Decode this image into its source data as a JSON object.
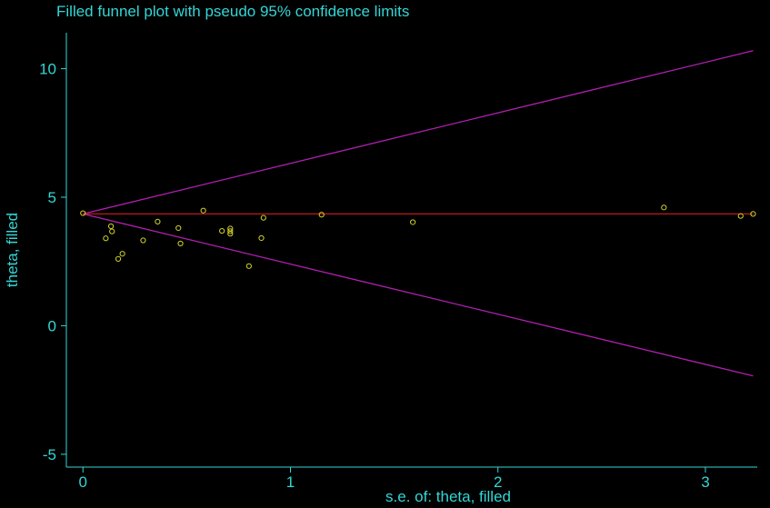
{
  "chart_data": {
    "type": "scatter",
    "title": "Filled funnel plot with pseudo 95% confidence limits",
    "xlabel": "s.e. of: theta, filled",
    "ylabel": "theta, filled",
    "xlim": [
      -0.08,
      3.25
    ],
    "ylim": [
      -5.5,
      11.4
    ],
    "x_ticks": [
      0,
      1,
      2,
      3
    ],
    "y_ticks": [
      -5,
      0,
      5,
      10
    ],
    "grid": false,
    "pooled_estimate": 4.35,
    "confidence_limits": {
      "upper": [
        [
          0,
          4.35
        ],
        [
          3.23,
          10.7
        ]
      ],
      "lower": [
        [
          0,
          4.35
        ],
        [
          3.23,
          -1.95
        ]
      ]
    },
    "points": [
      {
        "x": 0.0,
        "y": 4.38
      },
      {
        "x": 0.11,
        "y": 3.4
      },
      {
        "x": 0.135,
        "y": 3.87
      },
      {
        "x": 0.14,
        "y": 3.67
      },
      {
        "x": 0.17,
        "y": 2.6
      },
      {
        "x": 0.19,
        "y": 2.8
      },
      {
        "x": 0.29,
        "y": 3.32
      },
      {
        "x": 0.36,
        "y": 4.05
      },
      {
        "x": 0.46,
        "y": 3.8
      },
      {
        "x": 0.47,
        "y": 3.2
      },
      {
        "x": 0.58,
        "y": 4.48
      },
      {
        "x": 0.67,
        "y": 3.69
      },
      {
        "x": 0.71,
        "y": 3.78
      },
      {
        "x": 0.71,
        "y": 3.68
      },
      {
        "x": 0.71,
        "y": 3.58
      },
      {
        "x": 0.8,
        "y": 2.32
      },
      {
        "x": 0.86,
        "y": 3.41
      },
      {
        "x": 0.87,
        "y": 4.2
      },
      {
        "x": 1.15,
        "y": 4.32
      },
      {
        "x": 1.59,
        "y": 4.03
      },
      {
        "x": 2.8,
        "y": 4.6
      },
      {
        "x": 3.17,
        "y": 4.27
      },
      {
        "x": 3.23,
        "y": 4.35
      }
    ],
    "colors": {
      "background": "#000000",
      "axis": "#33d6d6",
      "text": "#33d6d6",
      "points": "#d4d42a",
      "confidence_limits": "#b020b0",
      "pooled_line": "#c01818"
    }
  }
}
